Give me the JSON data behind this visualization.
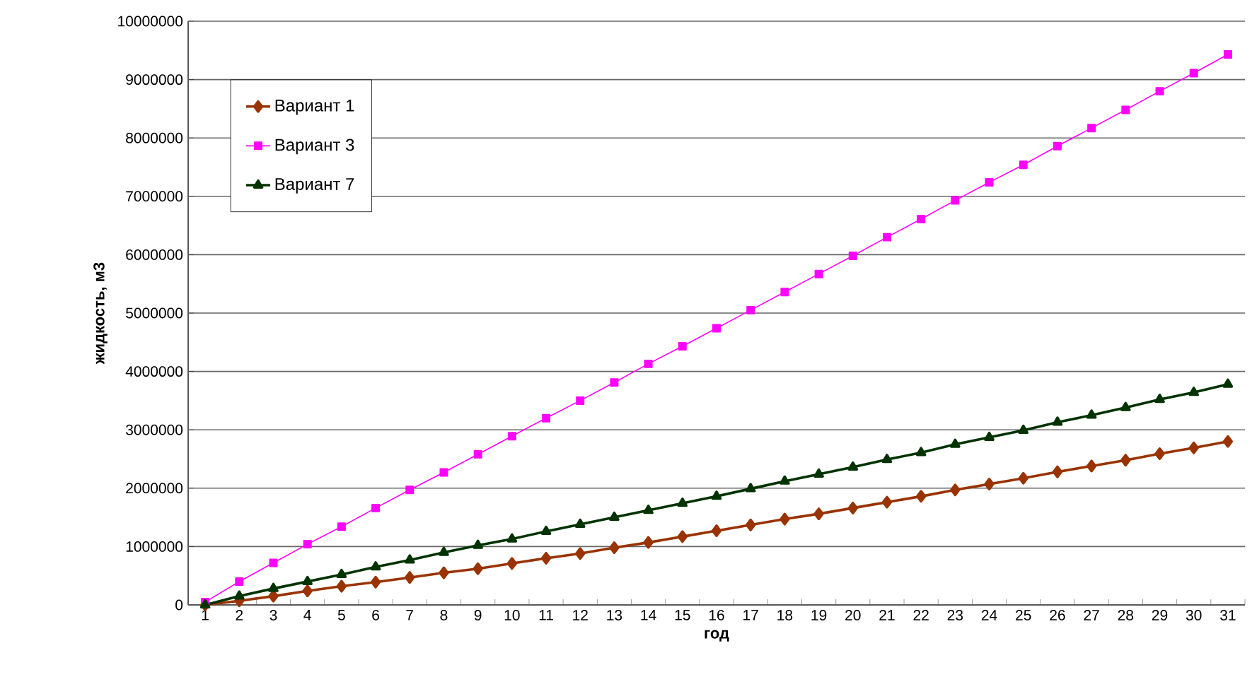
{
  "chart_data": {
    "type": "line",
    "xlabel": "год",
    "ylabel": "жидкость, м3",
    "categories": [
      "1",
      "2",
      "3",
      "4",
      "5",
      "6",
      "7",
      "8",
      "9",
      "10",
      "11",
      "12",
      "13",
      "14",
      "15",
      "16",
      "17",
      "18",
      "19",
      "20",
      "21",
      "22",
      "23",
      "24",
      "25",
      "26",
      "27",
      "28",
      "29",
      "30",
      "31"
    ],
    "ylim": [
      0,
      10000000
    ],
    "yticks": [
      0,
      1000000,
      2000000,
      3000000,
      4000000,
      5000000,
      6000000,
      7000000,
      8000000,
      9000000,
      10000000
    ],
    "grid": "y",
    "legend": "top left",
    "series": [
      {
        "name": "Вариант 1",
        "color": "#993300",
        "marker": "diamond",
        "values": [
          0,
          70000,
          150000,
          240000,
          320000,
          390000,
          470000,
          550000,
          620000,
          710000,
          800000,
          880000,
          980000,
          1070000,
          1170000,
          1270000,
          1370000,
          1470000,
          1560000,
          1660000,
          1760000,
          1860000,
          1970000,
          2070000,
          2170000,
          2280000,
          2380000,
          2480000,
          2590000,
          2690000,
          2800000
        ]
      },
      {
        "name": "Вариант 3",
        "color": "#ff00ff",
        "marker": "square",
        "values": [
          50000,
          400000,
          720000,
          1040000,
          1340000,
          1660000,
          1970000,
          2270000,
          2580000,
          2890000,
          3200000,
          3500000,
          3810000,
          4130000,
          4430000,
          4740000,
          5050000,
          5360000,
          5670000,
          5980000,
          6300000,
          6610000,
          6930000,
          7240000,
          7540000,
          7860000,
          8170000,
          8480000,
          8800000,
          9110000,
          9430000
        ]
      },
      {
        "name": "Вариант 7",
        "color": "#003300",
        "marker": "triangle",
        "values": [
          0,
          150000,
          280000,
          400000,
          520000,
          650000,
          770000,
          900000,
          1020000,
          1130000,
          1260000,
          1380000,
          1500000,
          1620000,
          1740000,
          1860000,
          1990000,
          2120000,
          2240000,
          2360000,
          2490000,
          2610000,
          2750000,
          2870000,
          2990000,
          3130000,
          3250000,
          3380000,
          3520000,
          3640000,
          3780000
        ]
      }
    ]
  }
}
